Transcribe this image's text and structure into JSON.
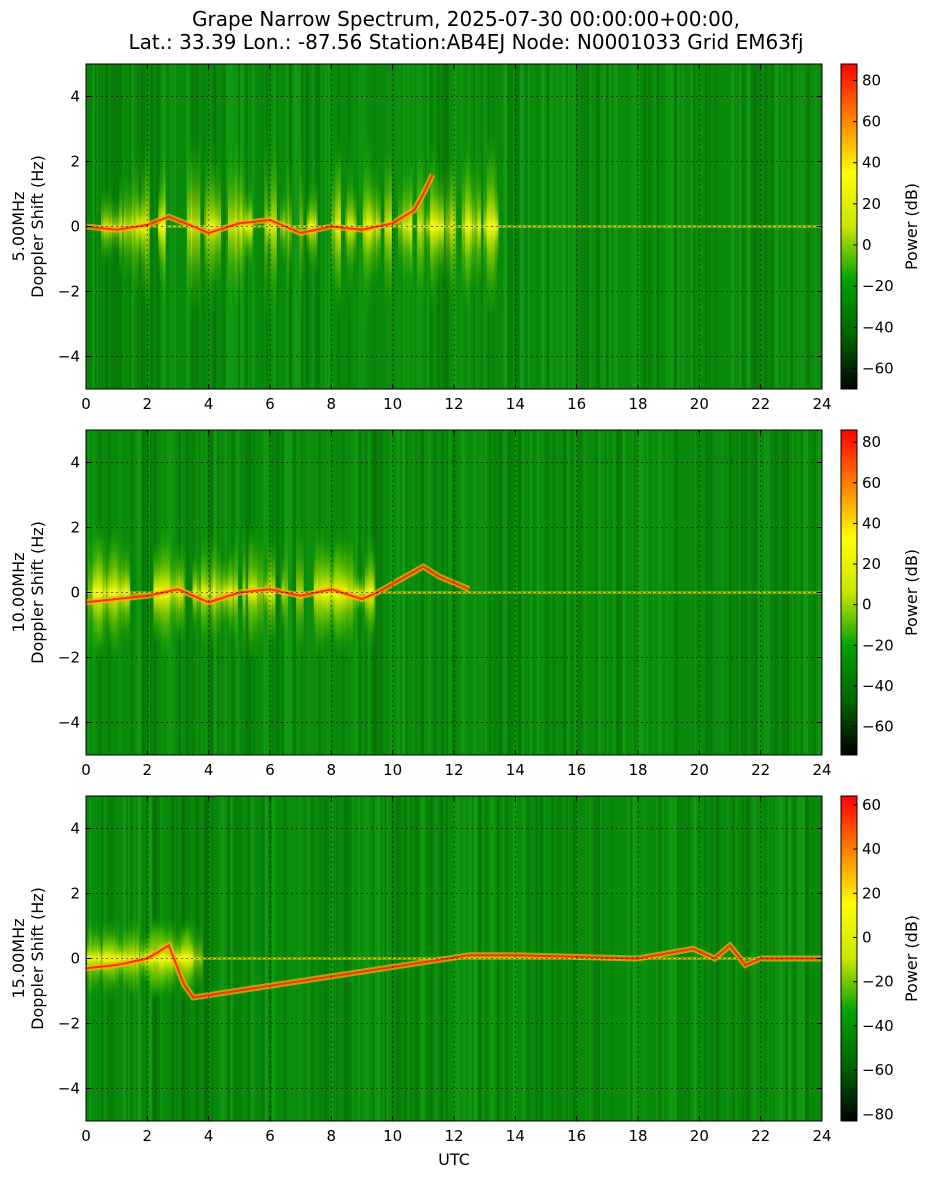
{
  "chart_data": {
    "type": "heatmap",
    "title": "Grape Narrow Spectrum, 2025-07-30 00:00:00+00:00,",
    "subtitle": "Lat.: 33.39 Lon.: -87.56 Station:AB4EJ Node: N0001033 Grid EM63fj",
    "xlabel": "UTC",
    "x_ticks": [
      "0",
      "2",
      "4",
      "6",
      "8",
      "10",
      "12",
      "14",
      "16",
      "18",
      "20",
      "22",
      "24"
    ],
    "xlim": [
      0,
      24
    ],
    "y_ticks": [
      "−4",
      "−2",
      "0",
      "2",
      "4"
    ],
    "ylim": [
      -5,
      5
    ],
    "grid": true,
    "colormap": [
      "#000000",
      "#006400",
      "#00a000",
      "#c8e600",
      "#ffff00",
      "#ff8000",
      "#ff0000"
    ],
    "colorbar_label": "Power (dB)",
    "panels": [
      {
        "ylabel_line1": "5.00MHz",
        "ylabel_line2": "Doppler Shift (Hz)",
        "colorbar_range": [
          -70,
          88
        ],
        "colorbar_ticks": [
          "80",
          "60",
          "40",
          "20",
          "0",
          "−20",
          "−40",
          "−60"
        ],
        "colorbar_tick_values": [
          80,
          60,
          40,
          20,
          0,
          -20,
          -40,
          -60
        ],
        "carrier_trace": [
          [
            0,
            0.0
          ],
          [
            1,
            -0.1
          ],
          [
            2,
            0.05
          ],
          [
            2.7,
            0.3
          ],
          [
            3.5,
            0.0
          ],
          [
            4,
            -0.2
          ],
          [
            5,
            0.1
          ],
          [
            6,
            0.2
          ],
          [
            7,
            -0.2
          ],
          [
            8,
            0.0
          ],
          [
            9,
            -0.1
          ],
          [
            10,
            0.1
          ],
          [
            10.7,
            0.5
          ],
          [
            11,
            1.0
          ],
          [
            11.3,
            1.6
          ]
        ],
        "bright_region": [
          0,
          13.5
        ],
        "bright_halfwidth": 2.2
      },
      {
        "ylabel_line1": "10.00MHz",
        "ylabel_line2": "Doppler Shift (Hz)",
        "colorbar_range": [
          -74,
          86
        ],
        "colorbar_ticks": [
          "80",
          "60",
          "40",
          "20",
          "0",
          "−20",
          "−40",
          "−60"
        ],
        "colorbar_tick_values": [
          80,
          60,
          40,
          20,
          0,
          -20,
          -40,
          -60
        ],
        "carrier_trace": [
          [
            0,
            -0.3
          ],
          [
            1,
            -0.2
          ],
          [
            2,
            -0.1
          ],
          [
            3,
            0.1
          ],
          [
            4,
            -0.3
          ],
          [
            5,
            0.0
          ],
          [
            6,
            0.1
          ],
          [
            7,
            -0.1
          ],
          [
            8,
            0.1
          ],
          [
            9,
            -0.2
          ],
          [
            9.5,
            0.0
          ],
          [
            11,
            0.8
          ],
          [
            11.5,
            0.5
          ],
          [
            12,
            0.3
          ],
          [
            12.5,
            0.1
          ]
        ],
        "bright_region": [
          0,
          9.5
        ],
        "bright_halfwidth": 1.6
      },
      {
        "ylabel_line1": "15.00MHz",
        "ylabel_line2": "Doppler Shift (Hz)",
        "colorbar_range": [
          -83,
          64
        ],
        "colorbar_ticks": [
          "60",
          "40",
          "20",
          "0",
          "−20",
          "−40",
          "−60",
          "−80"
        ],
        "colorbar_tick_values": [
          60,
          40,
          20,
          0,
          -20,
          -40,
          -60,
          -80
        ],
        "carrier_trace": [
          [
            0,
            -0.3
          ],
          [
            1,
            -0.2
          ],
          [
            2,
            0.0
          ],
          [
            2.7,
            0.4
          ],
          [
            3.2,
            -0.8
          ],
          [
            3.5,
            -1.2
          ],
          [
            12.5,
            0.1
          ],
          [
            14,
            0.1
          ],
          [
            16,
            0.05
          ],
          [
            18,
            0.0
          ],
          [
            19.8,
            0.3
          ],
          [
            20.5,
            0.0
          ],
          [
            21,
            0.4
          ],
          [
            21.5,
            -0.2
          ],
          [
            22,
            0.0
          ],
          [
            24,
            0.0
          ]
        ],
        "bright_region": [
          0,
          3.5
        ],
        "bright_halfwidth": 1.0
      }
    ]
  }
}
